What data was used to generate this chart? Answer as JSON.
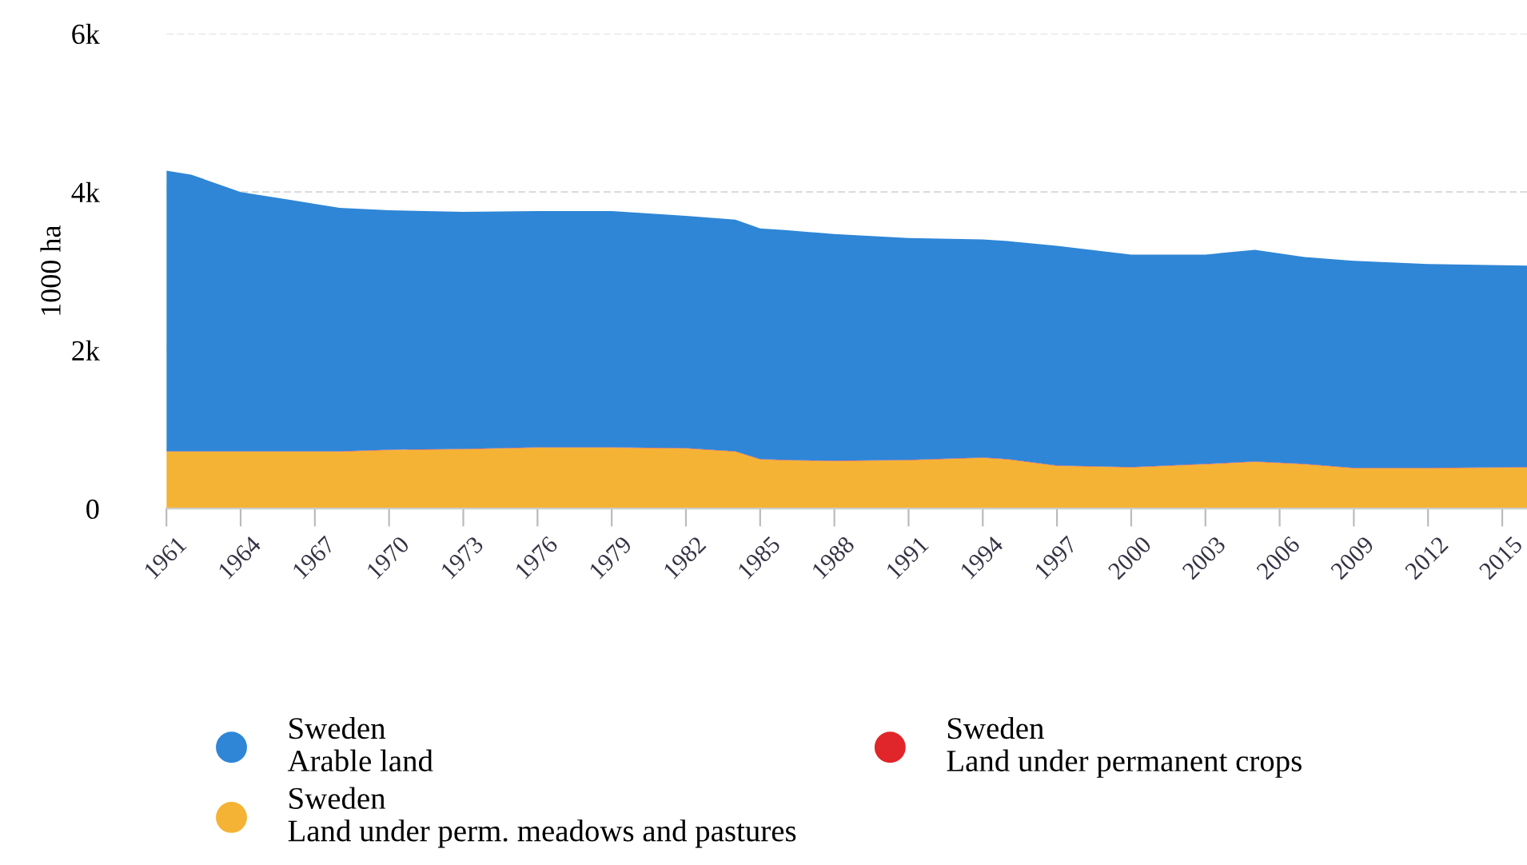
{
  "chart_data": {
    "type": "area",
    "stacked": true,
    "ylabel": "1000 ha",
    "x": [
      1961,
      1962,
      1964,
      1966,
      1968,
      1970,
      1973,
      1976,
      1979,
      1982,
      1984,
      1985,
      1986,
      1988,
      1991,
      1994,
      1995,
      1997,
      2000,
      2003,
      2005,
      2007,
      2009,
      2012,
      2016
    ],
    "series": [
      {
        "name": "Sweden\nLand under perm. meadows and pastures",
        "color": "#f5b335",
        "values": [
          720,
          720,
          720,
          720,
          720,
          740,
          750,
          770,
          770,
          760,
          720,
          620,
          610,
          600,
          610,
          640,
          620,
          540,
          520,
          560,
          590,
          560,
          510,
          510,
          520
        ]
      },
      {
        "name": "Sweden\nLand under permanent crops",
        "color": "#e0262a",
        "values": [
          5,
          5,
          5,
          5,
          5,
          5,
          5,
          5,
          5,
          5,
          5,
          5,
          5,
          5,
          5,
          5,
          5,
          5,
          5,
          5,
          5,
          5,
          5,
          5,
          5
        ]
      },
      {
        "name": "Sweden\nArable land",
        "color": "#2f86d6",
        "values": [
          3545,
          3495,
          3275,
          3175,
          3075,
          3025,
          2995,
          2985,
          2985,
          2935,
          2925,
          2915,
          2905,
          2865,
          2805,
          2755,
          2755,
          2775,
          2685,
          2645,
          2675,
          2615,
          2615,
          2575,
          2545
        ]
      }
    ],
    "xlim": [
      1961,
      2016
    ],
    "xticks": [
      1961,
      1964,
      1967,
      1970,
      1973,
      1976,
      1979,
      1982,
      1985,
      1988,
      1991,
      1994,
      1997,
      2000,
      2003,
      2006,
      2009,
      2012,
      2015
    ],
    "ylim": [
      0,
      6000
    ],
    "yticks": [
      {
        "value": 0,
        "label": "0"
      },
      {
        "value": 2000,
        "label": "2k"
      },
      {
        "value": 4000,
        "label": "4k"
      },
      {
        "value": 6000,
        "label": "6k"
      }
    ],
    "grid": "y",
    "legend": "bottom"
  }
}
